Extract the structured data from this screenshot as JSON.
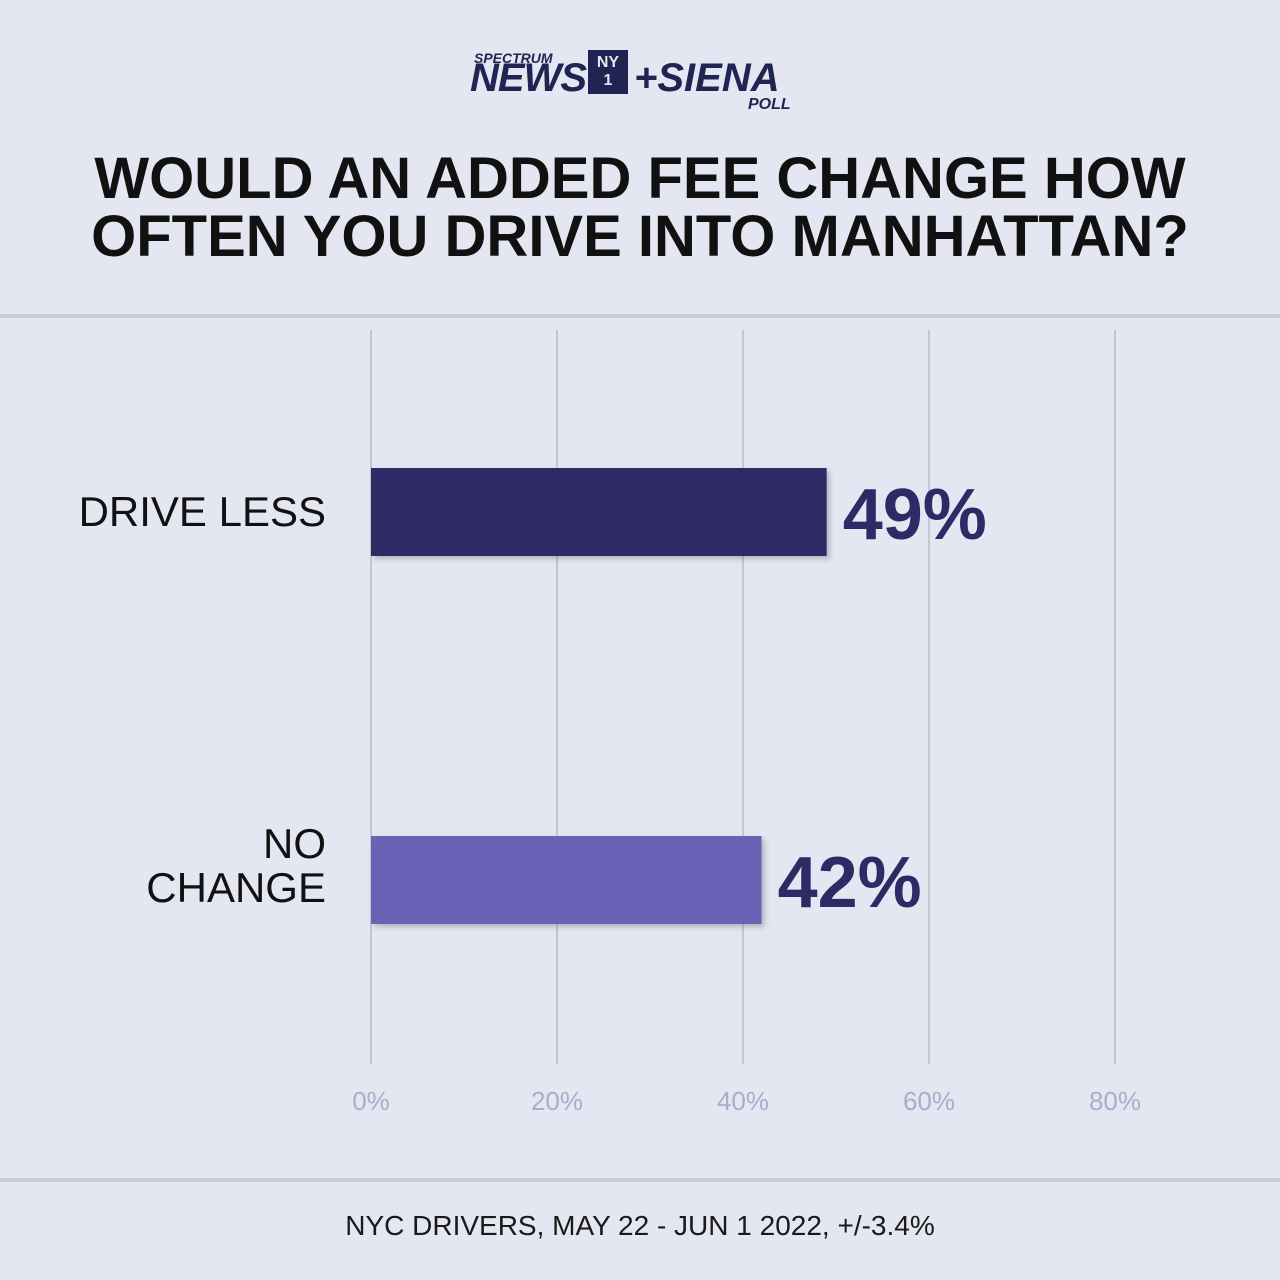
{
  "brand": {
    "spectrum": "SPECTRUM",
    "news": "NEWS",
    "ny_top": "NY",
    "ny_bottom": "1",
    "siena": "+SIENA",
    "poll": "POLL"
  },
  "title_line1": "WOULD AN ADDED FEE CHANGE HOW",
  "title_line2": "OFTEN YOU DRIVE INTO MANHATTAN?",
  "footer": "NYC DRIVERS, MAY 22 - JUN 1 2022, +/-3.4%",
  "colors": {
    "drive_less": "#2e2a66",
    "no_change": "#6b62b6",
    "value_label": "#2e2a66",
    "tick_label": "#a9adcc",
    "grid": "#c6c8d0"
  },
  "chart_data": {
    "type": "bar",
    "orientation": "horizontal",
    "title": "WOULD AN ADDED FEE CHANGE HOW OFTEN YOU DRIVE INTO MANHATTAN?",
    "categories": [
      [
        "DRIVE LESS"
      ],
      [
        "NO",
        "CHANGE"
      ]
    ],
    "values": [
      49,
      42
    ],
    "value_labels": [
      "49%",
      "42%"
    ],
    "xlim": [
      0,
      80
    ],
    "ticks": [
      0,
      20,
      40,
      60,
      80
    ],
    "tick_labels": [
      "0%",
      "20%",
      "40%",
      "60%",
      "80%"
    ],
    "grid": true,
    "xlabel": "",
    "ylabel": ""
  }
}
